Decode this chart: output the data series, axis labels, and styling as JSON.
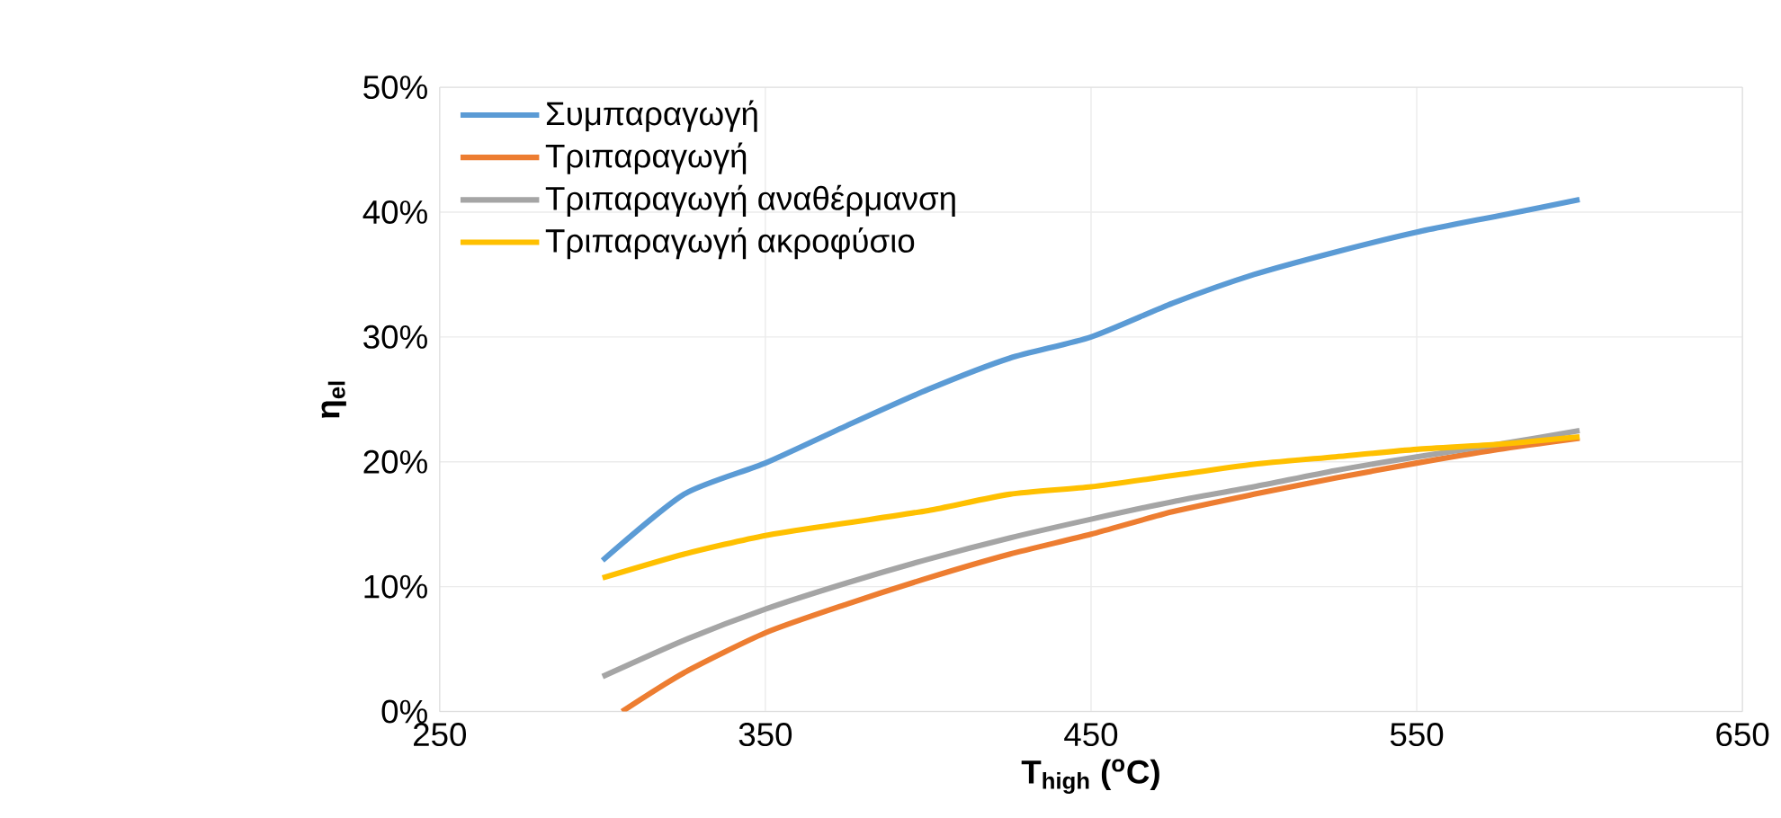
{
  "chart_data": {
    "type": "line",
    "xlabel": "T$_{high}$ ($^{o}$C)",
    "ylabel": "η$_{el}$",
    "x": [
      300,
      325,
      350,
      375,
      400,
      425,
      450,
      475,
      500,
      525,
      550,
      575,
      600
    ],
    "xlim": [
      250,
      650
    ],
    "xticks": [
      250,
      350,
      450,
      550,
      650
    ],
    "ylim": [
      0,
      50
    ],
    "yticks": [
      {
        "value": 0,
        "label": "0%"
      },
      {
        "value": 10,
        "label": "10%"
      },
      {
        "value": 20,
        "label": "20%"
      },
      {
        "value": 30,
        "label": "30%"
      },
      {
        "value": 40,
        "label": "40%"
      },
      {
        "value": 50,
        "label": "50%"
      }
    ],
    "grid": true,
    "legend": "top left",
    "marker": "none",
    "line_style": "solid",
    "series": [
      {
        "name": "Συμπαραγωγή",
        "color": "#5b9bd5",
        "values": [
          12.1,
          17.4,
          19.9,
          22.9,
          25.8,
          28.3,
          30.0,
          32.7,
          35.0,
          36.8,
          38.4,
          39.7,
          41.0
        ]
      },
      {
        "name": "Τριπαραγωγή",
        "color": "#ed7d31",
        "x": [
          306,
          325,
          350,
          375,
          400,
          425,
          450,
          475,
          500,
          525,
          550,
          575,
          600
        ],
        "values": [
          0,
          3.1,
          6.3,
          8.6,
          10.7,
          12.6,
          14.2,
          16.0,
          17.4,
          18.7,
          19.9,
          21.0,
          21.9
        ]
      },
      {
        "name": "Τριπαραγωγή αναθέρμανση",
        "color": "#a5a5a5",
        "values": [
          2.8,
          5.7,
          8.2,
          10.3,
          12.2,
          13.9,
          15.4,
          16.8,
          18.0,
          19.3,
          20.4,
          21.4,
          22.5
        ]
      },
      {
        "name": "Τριπαραγωγή ακροφύσιο",
        "color": "#ffc000",
        "values": [
          10.7,
          12.6,
          14.1,
          15.1,
          16.1,
          17.4,
          18.0,
          18.9,
          19.8,
          20.4,
          21.0,
          21.4,
          22.0
        ]
      }
    ]
  }
}
